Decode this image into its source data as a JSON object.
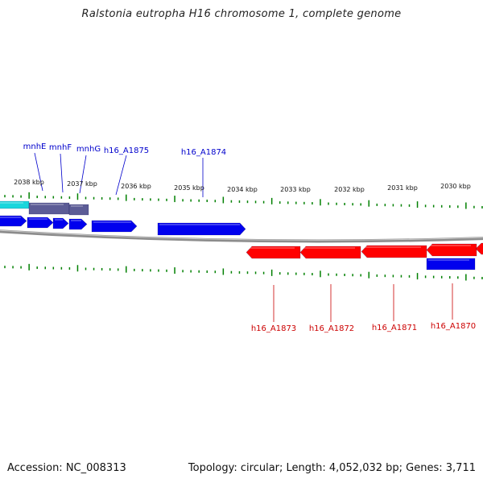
{
  "title": "Ralstonia eutropha H16 chromosome 1, complete genome",
  "footer": {
    "accession": "Accession: NC_008313",
    "summary": "Topology: circular; Length: 4,052,032 bp; Genes: 3,711"
  },
  "colors": {
    "forward_gene": "#0000ee",
    "reverse_gene": "#ff0000",
    "cyan_gene": "#19d6dc",
    "grey_gene": "#5c5c96",
    "backbone": "#8c8c8c",
    "tick": "#008000",
    "forward_label": "#0000cc",
    "reverse_label": "#cc0000"
  },
  "kbp_ticks": [
    {
      "label": "2038 kbp"
    },
    {
      "label": "2037 kbp"
    },
    {
      "label": "2036 kbp"
    },
    {
      "label": "2035 kbp"
    },
    {
      "label": "2034 kbp"
    },
    {
      "label": "2033 kbp"
    },
    {
      "label": "2032 kbp"
    },
    {
      "label": "2031 kbp"
    },
    {
      "label": "2030 kbp"
    }
  ],
  "forward_labels": [
    {
      "name": "mnhE"
    },
    {
      "name": "mnhF"
    },
    {
      "name": "mnhG"
    },
    {
      "name": "h16_A1875"
    },
    {
      "name": "h16_A1874"
    }
  ],
  "reverse_labels": [
    {
      "name": "h16_A1873"
    },
    {
      "name": "h16_A1872"
    },
    {
      "name": "h16_A1871"
    },
    {
      "name": "h16_A1870"
    }
  ]
}
